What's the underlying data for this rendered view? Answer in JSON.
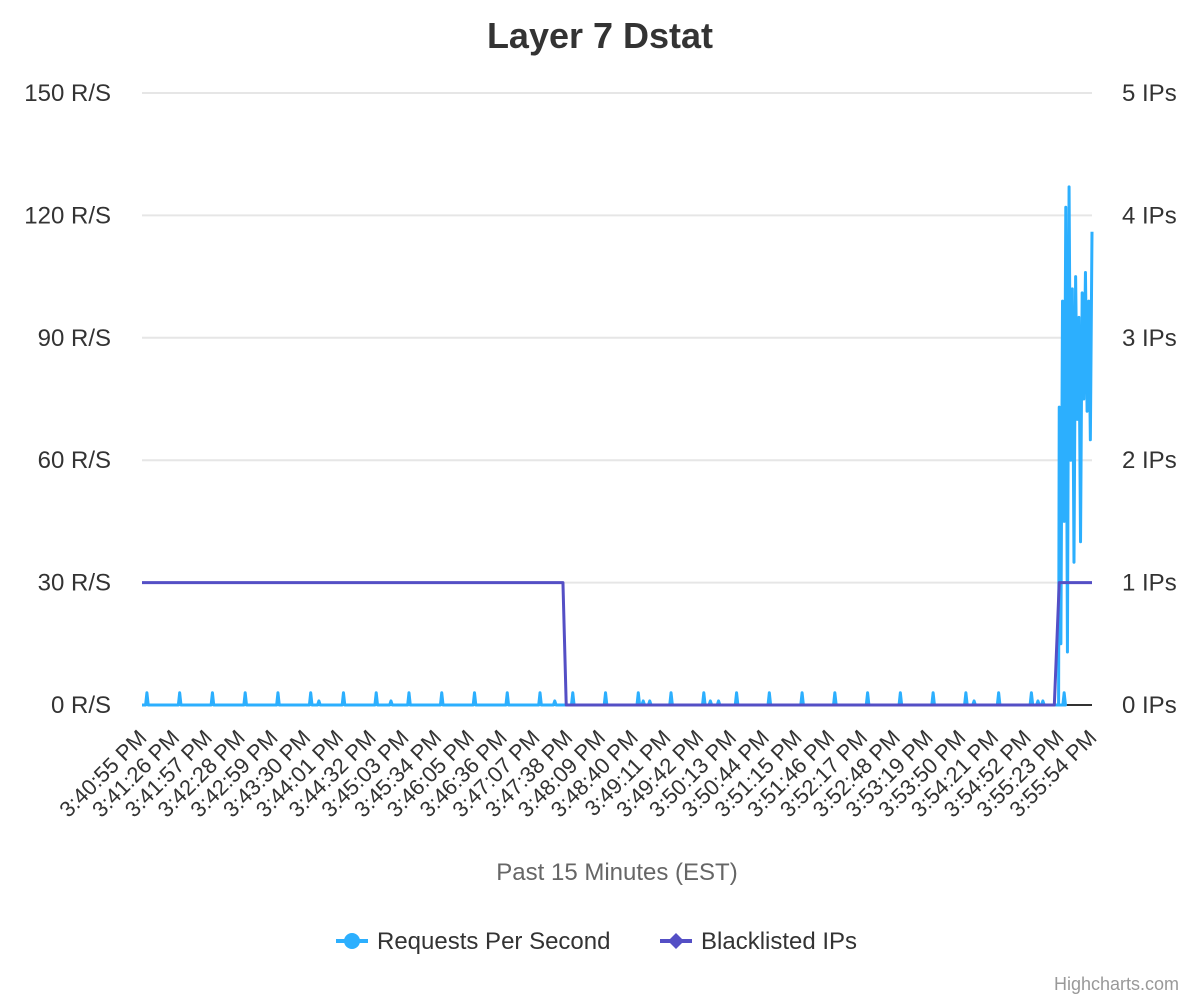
{
  "chart_data": {
    "type": "line",
    "title": "Layer 7 Dstat",
    "xlabel": "Past 15 Minutes (EST)",
    "x_categories": [
      "3:40:55 PM",
      "3:41:26 PM",
      "3:41:57 PM",
      "3:42:28 PM",
      "3:42:59 PM",
      "3:43:30 PM",
      "3:44:01 PM",
      "3:44:32 PM",
      "3:45:03 PM",
      "3:45:34 PM",
      "3:46:05 PM",
      "3:46:36 PM",
      "3:47:07 PM",
      "3:47:38 PM",
      "3:48:09 PM",
      "3:48:40 PM",
      "3:49:11 PM",
      "3:49:42 PM",
      "3:50:13 PM",
      "3:50:44 PM",
      "3:51:15 PM",
      "3:51:46 PM",
      "3:52:17 PM",
      "3:52:48 PM",
      "3:53:19 PM",
      "3:53:50 PM",
      "3:54:21 PM",
      "3:54:52 PM",
      "3:55:23 PM",
      "3:55:54 PM"
    ],
    "y_axis_left": {
      "ticks": [
        "0 R/S",
        "30 R/S",
        "60 R/S",
        "90 R/S",
        "120 R/S",
        "150 R/S"
      ],
      "range": [
        0,
        150
      ]
    },
    "y_axis_right": {
      "ticks": [
        "0 IPs",
        "1 IPs",
        "2 IPs",
        "3 IPs",
        "4 IPs",
        "5 IPs"
      ],
      "range": [
        0,
        5
      ]
    },
    "grid": true,
    "legend_position": "bottom-center",
    "series": [
      {
        "name": "Requests Per Second",
        "color": "#2caffe",
        "axis": "left",
        "x_range": [
          0,
          29
        ],
        "spike_positions": [
          0.15,
          1.15,
          2.15,
          3.15,
          4.15,
          5.15,
          5.4,
          6.15,
          7.15,
          7.6,
          8.15,
          9.15,
          10.15,
          11.15,
          12.15,
          12.6,
          13.15,
          14.15,
          15.15,
          15.3,
          15.5,
          16.15,
          17.15,
          17.35,
          17.6,
          18.15,
          19.15,
          20.15,
          21.15,
          22.15,
          23.15,
          24.15,
          25.15,
          25.4,
          26.15,
          27.15,
          27.35,
          27.5,
          28.15
        ],
        "spike_values": [
          3,
          3,
          3,
          3,
          3,
          3,
          1,
          3,
          3,
          1,
          3,
          3,
          3,
          3,
          3,
          1,
          3,
          3,
          3,
          1,
          1,
          3,
          3,
          1,
          1,
          3,
          3,
          3,
          3,
          3,
          3,
          3,
          3,
          1,
          3,
          3,
          1,
          1,
          3
        ],
        "baseline": 0,
        "burst": {
          "x": [
            28.0,
            28.05,
            28.1,
            28.15,
            28.2,
            28.25,
            28.3,
            28.35,
            28.4,
            28.45,
            28.5,
            28.55,
            28.6,
            28.65,
            28.7,
            28.75,
            28.8,
            28.85,
            28.9,
            28.95,
            29.0
          ],
          "values": [
            73,
            15,
            99,
            45,
            122,
            13,
            127,
            60,
            102,
            35,
            105,
            70,
            95,
            40,
            101,
            75,
            106,
            72,
            99,
            65,
            116
          ]
        }
      },
      {
        "name": "Blacklisted IPs",
        "color": "#544fc5",
        "axis": "right",
        "points": [
          [
            0,
            1
          ],
          [
            12.85,
            1
          ],
          [
            12.95,
            0
          ],
          [
            27.85,
            0
          ],
          [
            28.0,
            1
          ],
          [
            29.0,
            1
          ]
        ]
      }
    ]
  },
  "credits": "Highcharts.com",
  "icons": {
    "legend_rps": "circle-marker-icon",
    "legend_blacklist": "diamond-marker-icon"
  }
}
